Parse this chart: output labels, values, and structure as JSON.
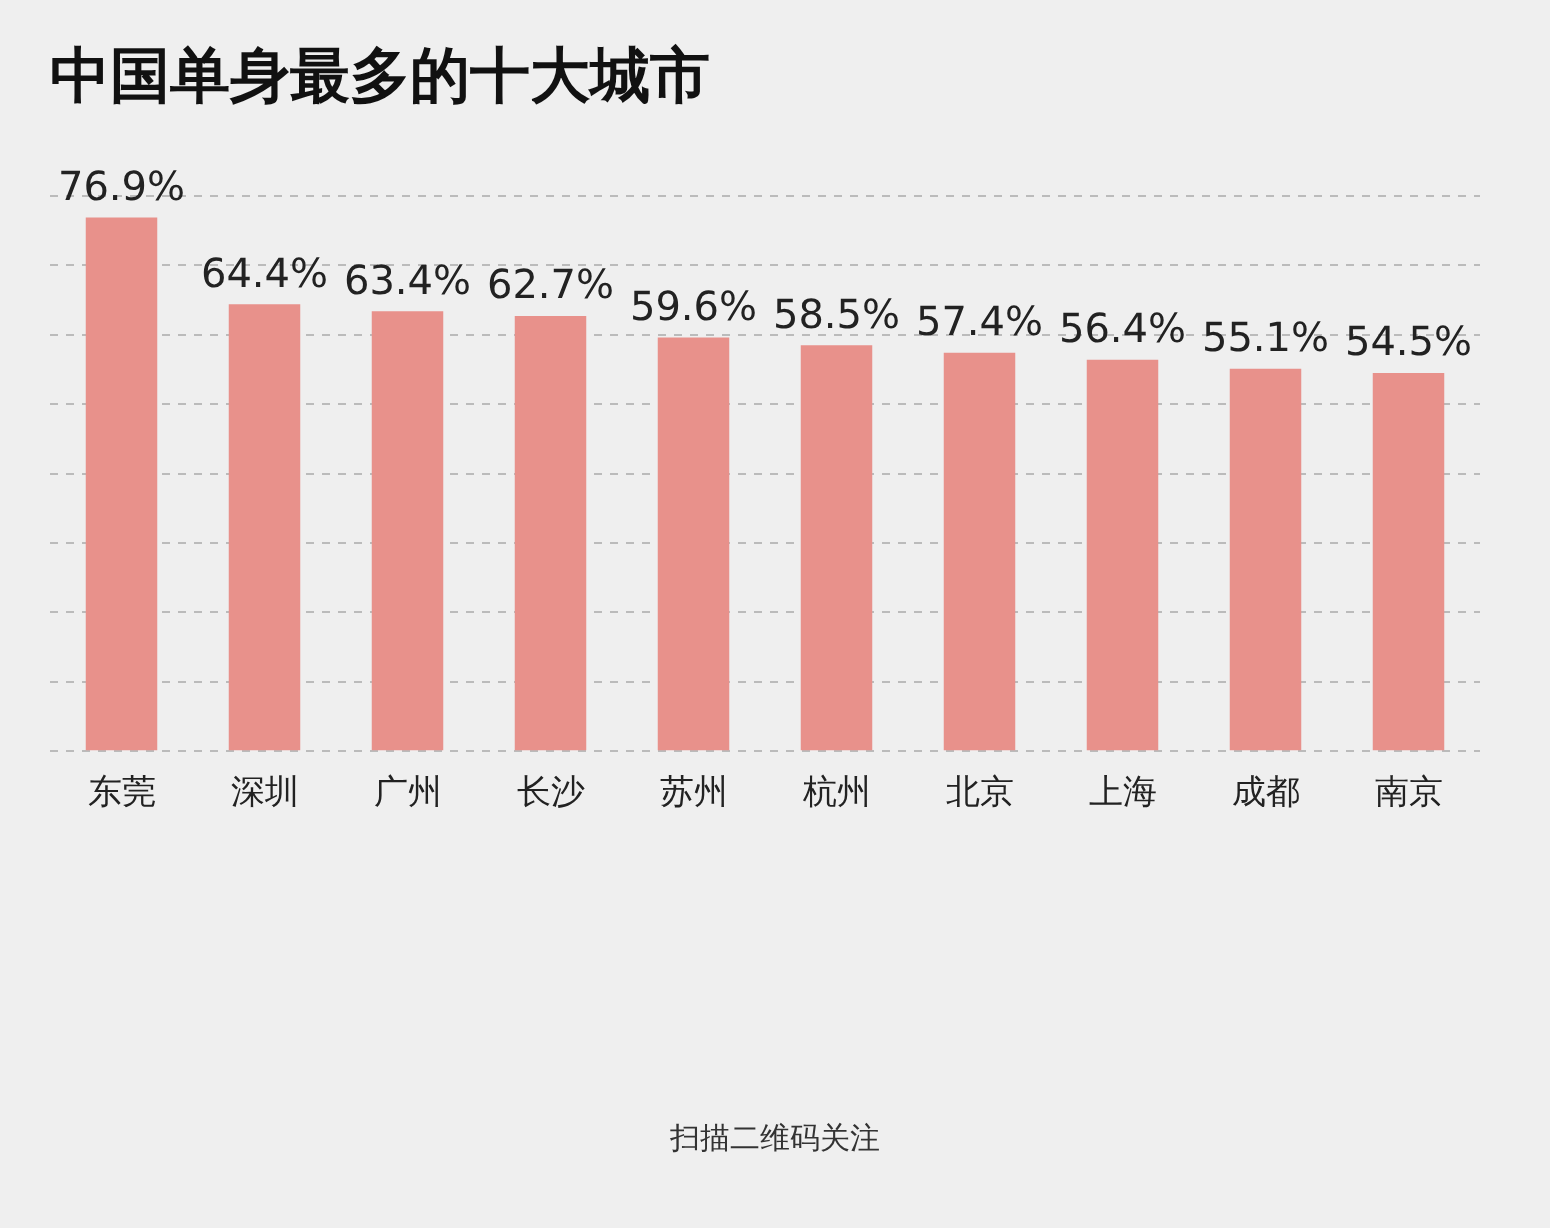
{
  "chart_data": {
    "type": "bar",
    "title": "中国单身最多的十大城市",
    "categories": [
      "东莞",
      "深圳",
      "广州",
      "长沙",
      "苏州",
      "杭州",
      "北京",
      "上海",
      "成都",
      "南京"
    ],
    "values": [
      76.9,
      64.4,
      63.4,
      62.7,
      59.6,
      58.5,
      57.4,
      56.4,
      55.1,
      54.5
    ],
    "value_labels": [
      "76.9%",
      "64.4%",
      "63.4%",
      "62.7%",
      "59.6%",
      "58.5%",
      "57.4%",
      "56.4%",
      "55.1%",
      "54.5%"
    ],
    "color": "#e8918b",
    "ylim": [
      0,
      80
    ],
    "yticks": [
      {
        "value": 0,
        "label": null
      },
      {
        "value": 10,
        "label": null
      },
      {
        "value": 20,
        "label": null
      },
      {
        "value": 30,
        "label": null
      },
      {
        "value": 40,
        "label": null
      },
      {
        "value": 50,
        "label": null
      },
      {
        "value": 60,
        "label": null
      },
      {
        "value": 70,
        "label": null
      },
      {
        "value": 80,
        "label": null
      }
    ],
    "grid": "y",
    "tick_labels": "x",
    "legend": false,
    "annotations": [
      "扫描二维码关注"
    ]
  }
}
